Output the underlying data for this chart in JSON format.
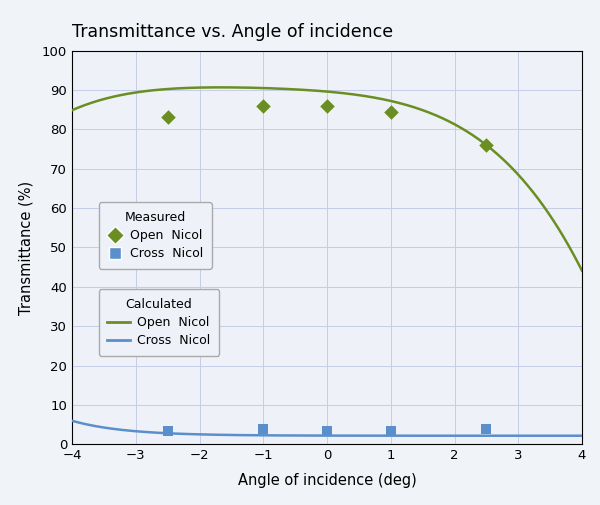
{
  "title": "Transmittance vs. Angle of incidence",
  "xlabel": "Angle of incidence (deg)",
  "ylabel": "Transmittance (%)",
  "xlim": [
    -4,
    4
  ],
  "ylim": [
    0,
    100
  ],
  "xticks": [
    -4,
    -3,
    -2,
    -1,
    0,
    1,
    2,
    3,
    4
  ],
  "yticks": [
    0,
    10,
    20,
    30,
    40,
    50,
    60,
    70,
    80,
    90,
    100
  ],
  "background_color": "#f0f4f8",
  "plot_bg_color": "#eef2f8",
  "grid_color": "#c5cce8",
  "measured_open_nicol_x": [
    -2.5,
    -1.0,
    0.0,
    1.0,
    2.5
  ],
  "measured_open_nicol_y": [
    83.0,
    86.0,
    86.0,
    84.5,
    76.0
  ],
  "measured_cross_nicol_x": [
    -2.5,
    -1.0,
    0.0,
    1.0,
    2.5
  ],
  "measured_cross_nicol_y": [
    3.5,
    3.8,
    3.5,
    3.5,
    3.8
  ],
  "open_nicol_color": "#6b8e23",
  "cross_nicol_color": "#5b8fcc",
  "legend_bg": "#eef2f8",
  "legend_edge": "#aaaaaa"
}
